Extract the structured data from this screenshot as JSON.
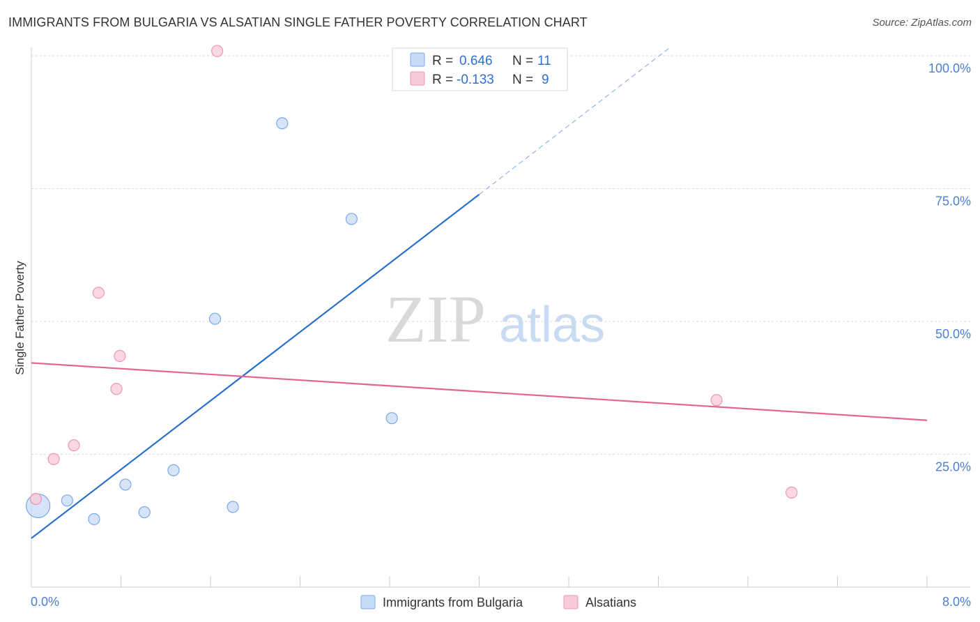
{
  "header": {
    "title": "IMMIGRANTS FROM BULGARIA VS ALSATIAN SINGLE FATHER POVERTY CORRELATION CHART",
    "source": "Source: ZipAtlas.com"
  },
  "watermark": {
    "zip": "ZIP",
    "atlas": "atlas"
  },
  "colors": {
    "blue": "#4a86e8",
    "blue_fill": "#c7dbf7",
    "blue_line": "#2a6fd0",
    "pink": "#e87ba0",
    "pink_fill": "#f9cad8",
    "pink_line": "#e3658f",
    "tick": "#4a7fd4"
  },
  "legend": {
    "rows": [
      {
        "r_label": "R =",
        "r_value": "0.646",
        "n_label": "N =",
        "n_value": "11"
      },
      {
        "r_label": "R =",
        "r_value": "-0.133",
        "n_label": "N =",
        "n_value": "9"
      }
    ]
  },
  "bottom_legend": {
    "series1": "Immigrants from Bulgaria",
    "series2": "Alsatians"
  },
  "chart_data": {
    "type": "scatter",
    "title": "IMMIGRANTS FROM BULGARIA VS ALSATIAN SINGLE FATHER POVERTY CORRELATION CHART",
    "xlabel": "",
    "ylabel": "Single Father Poverty",
    "xlim": [
      0,
      8
    ],
    "ylim": [
      0,
      102
    ],
    "x_tick_labels": [
      "0.0%",
      "8.0%"
    ],
    "y_ticks": [
      25,
      50,
      75,
      100
    ],
    "y_tick_labels": [
      "25.0%",
      "50.0%",
      "75.0%",
      "100.0%"
    ],
    "grid": true,
    "series": [
      {
        "name": "Immigrants from Bulgaria",
        "color": "#4a86e8",
        "points": [
          {
            "x": 0.06,
            "y": 15.3,
            "big": true
          },
          {
            "x": 0.32,
            "y": 16.3
          },
          {
            "x": 0.56,
            "y": 12.8
          },
          {
            "x": 0.84,
            "y": 19.3
          },
          {
            "x": 1.01,
            "y": 14.1
          },
          {
            "x": 1.27,
            "y": 22.0
          },
          {
            "x": 1.64,
            "y": 50.5
          },
          {
            "x": 1.8,
            "y": 15.1
          },
          {
            "x": 2.24,
            "y": 87.3
          },
          {
            "x": 2.86,
            "y": 69.3
          },
          {
            "x": 3.22,
            "y": 31.8
          }
        ],
        "trend": {
          "x_start": 0.0,
          "y_start": 9.2,
          "x_end": 4.0,
          "y_end": 73.9,
          "dashed_to_x": 5.7,
          "dashed_to_y": 101.5
        }
      },
      {
        "name": "Alsatians",
        "color": "#e87ba0",
        "points": [
          {
            "x": 0.04,
            "y": 16.6
          },
          {
            "x": 0.2,
            "y": 24.1
          },
          {
            "x": 0.38,
            "y": 26.7
          },
          {
            "x": 0.6,
            "y": 55.4
          },
          {
            "x": 0.76,
            "y": 37.3
          },
          {
            "x": 0.79,
            "y": 43.5
          },
          {
            "x": 1.66,
            "y": 100.9
          },
          {
            "x": 6.12,
            "y": 35.2
          },
          {
            "x": 6.79,
            "y": 17.8
          }
        ],
        "trend": {
          "x_start": 0.0,
          "y_start": 42.2,
          "x_end": 8.0,
          "y_end": 31.4
        }
      }
    ]
  }
}
